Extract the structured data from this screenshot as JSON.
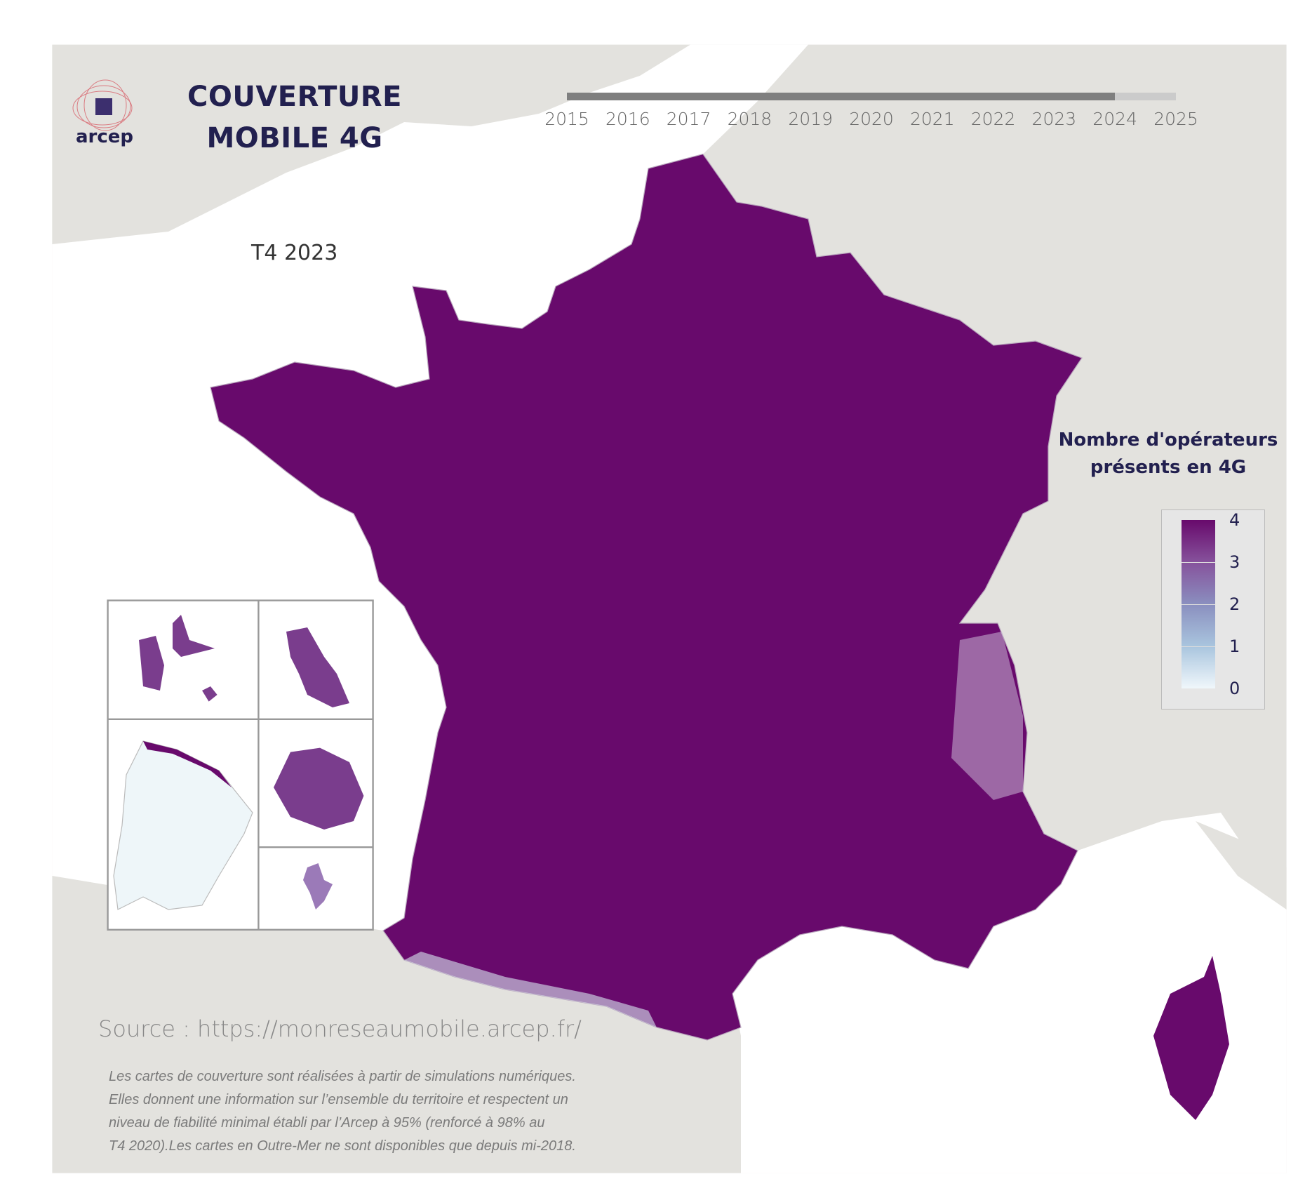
{
  "header": {
    "logo_text": "arcep",
    "title_line1": "COUVERTURE",
    "title_line2": "MOBILE 4G"
  },
  "timeline": {
    "years": [
      "2015",
      "2016",
      "2017",
      "2018",
      "2019",
      "2020",
      "2021",
      "2022",
      "2023",
      "2024",
      "2025"
    ],
    "progress_fraction": 0.9,
    "fill_color": "#7f7f7f",
    "track_color": "#cbcbcb"
  },
  "period_label": "T4 2023",
  "legend": {
    "title_line1": "Nombre d'opérateurs",
    "title_line2": "présents en 4G",
    "labels": [
      "4",
      "3",
      "2",
      "1",
      "0"
    ],
    "colors": [
      "#680a6c",
      "#86529c",
      "#8a8fbf",
      "#a9c5de",
      "#f0f7fb"
    ]
  },
  "colors": {
    "coverage_full": "#680a6c",
    "land": "#e3e2de",
    "sea": "#ffffff",
    "title": "#22204f"
  },
  "insets": [
    "Guadeloupe",
    "Martinique",
    "Guyane",
    "La Réunion",
    "Mayotte"
  ],
  "footer": {
    "source": "Source : https://monreseaumobile.arcep.fr/",
    "note_lines": [
      "Les cartes de couverture sont réalisées à partir de simulations numériques.",
      "Elles donnent une information sur l’ensemble du territoire et respectent un",
      "niveau de fiabilité minimal établi par l’Arcep à 95% (renforcé à 98% au",
      "T4 2020).Les cartes en Outre-Mer ne sont disponibles que depuis mi-2018."
    ]
  }
}
